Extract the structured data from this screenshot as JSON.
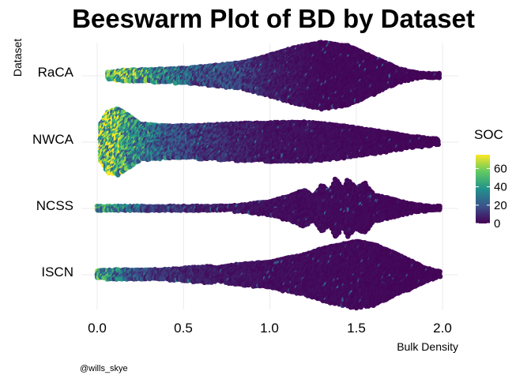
{
  "chart_data": {
    "type": "beeswarm",
    "title": "Beeswarm Plot of BD by Dataset",
    "xlabel": "Bulk Density",
    "ylabel": "Dataset",
    "xlim": [
      -0.05,
      2.05
    ],
    "xticks": [
      "0.0",
      "0.5",
      "1.0",
      "1.5",
      "2.0"
    ],
    "xtick_values": [
      0.0,
      0.5,
      1.0,
      1.5,
      2.0
    ],
    "categories": [
      "RaCA",
      "NWCA",
      "NCSS",
      "ISCN"
    ],
    "color_legend": {
      "title": "SOC",
      "range": [
        0,
        75
      ],
      "ticks": [
        "0",
        "20",
        "40",
        "60"
      ],
      "tick_values": [
        0,
        20,
        40,
        60
      ],
      "palette": "viridis",
      "colors": [
        "#440154",
        "#3b528b",
        "#21918c",
        "#5ec962",
        "#fde725"
      ]
    },
    "grid": true,
    "legend_position": "right",
    "series": [
      {
        "name": "RaCA",
        "x_range": [
          0.06,
          1.99
        ],
        "density_profile": [
          [
            0.06,
            0.1
          ],
          [
            0.15,
            0.16
          ],
          [
            0.3,
            0.18
          ],
          [
            0.5,
            0.22
          ],
          [
            0.7,
            0.32
          ],
          [
            0.85,
            0.4
          ],
          [
            1.0,
            0.62
          ],
          [
            1.15,
            0.85
          ],
          [
            1.3,
            1.0
          ],
          [
            1.45,
            0.9
          ],
          [
            1.6,
            0.55
          ],
          [
            1.75,
            0.2
          ],
          [
            1.85,
            0.08
          ],
          [
            1.99,
            0.04
          ]
        ],
        "soc_profile": [
          [
            0.06,
            45
          ],
          [
            0.2,
            50
          ],
          [
            0.4,
            30
          ],
          [
            0.6,
            18
          ],
          [
            0.8,
            15
          ],
          [
            1.0,
            6
          ],
          [
            1.3,
            2
          ],
          [
            1.99,
            1
          ]
        ]
      },
      {
        "name": "NWCA",
        "x_range": [
          0.02,
          1.98
        ],
        "density_profile": [
          [
            0.02,
            0.55
          ],
          [
            0.06,
            0.9
          ],
          [
            0.12,
            1.0
          ],
          [
            0.18,
            0.8
          ],
          [
            0.25,
            0.55
          ],
          [
            0.4,
            0.48
          ],
          [
            0.6,
            0.5
          ],
          [
            0.8,
            0.55
          ],
          [
            1.0,
            0.58
          ],
          [
            1.2,
            0.6
          ],
          [
            1.4,
            0.5
          ],
          [
            1.6,
            0.35
          ],
          [
            1.8,
            0.18
          ],
          [
            1.98,
            0.08
          ]
        ],
        "soc_profile": [
          [
            0.02,
            50
          ],
          [
            0.1,
            55
          ],
          [
            0.2,
            35
          ],
          [
            0.4,
            20
          ],
          [
            0.6,
            12
          ],
          [
            0.8,
            8
          ],
          [
            1.0,
            4
          ],
          [
            1.5,
            2
          ],
          [
            1.98,
            1
          ]
        ]
      },
      {
        "name": "NCSS",
        "x_range": [
          0.0,
          1.99
        ],
        "density_profile": [
          [
            0.0,
            0.04
          ],
          [
            0.5,
            0.04
          ],
          [
            0.8,
            0.08
          ],
          [
            1.0,
            0.2
          ],
          [
            1.1,
            0.35
          ],
          [
            1.2,
            0.55
          ],
          [
            1.25,
            0.35
          ],
          [
            1.3,
            0.7
          ],
          [
            1.35,
            0.5
          ],
          [
            1.38,
            0.9
          ],
          [
            1.42,
            0.55
          ],
          [
            1.45,
            0.85
          ],
          [
            1.5,
            0.6
          ],
          [
            1.55,
            0.75
          ],
          [
            1.6,
            0.4
          ],
          [
            1.7,
            0.3
          ],
          [
            1.8,
            0.15
          ],
          [
            1.9,
            0.08
          ],
          [
            1.99,
            0.04
          ]
        ],
        "soc_profile": [
          [
            0.0,
            40
          ],
          [
            0.1,
            35
          ],
          [
            0.3,
            15
          ],
          [
            0.6,
            8
          ],
          [
            1.0,
            3
          ],
          [
            1.99,
            1
          ]
        ]
      },
      {
        "name": "ISCN",
        "x_range": [
          0.0,
          1.99
        ],
        "density_profile": [
          [
            0.0,
            0.12
          ],
          [
            0.1,
            0.14
          ],
          [
            0.4,
            0.15
          ],
          [
            0.65,
            0.25
          ],
          [
            0.7,
            0.2
          ],
          [
            0.8,
            0.3
          ],
          [
            1.0,
            0.38
          ],
          [
            1.1,
            0.5
          ],
          [
            1.2,
            0.6
          ],
          [
            1.3,
            0.78
          ],
          [
            1.4,
            0.9
          ],
          [
            1.5,
            1.0
          ],
          [
            1.6,
            0.92
          ],
          [
            1.7,
            0.7
          ],
          [
            1.8,
            0.45
          ],
          [
            1.9,
            0.2
          ],
          [
            1.99,
            0.08
          ]
        ],
        "soc_profile": [
          [
            0.0,
            40
          ],
          [
            0.1,
            30
          ],
          [
            0.3,
            12
          ],
          [
            0.6,
            6
          ],
          [
            1.0,
            3
          ],
          [
            1.99,
            1
          ]
        ]
      }
    ]
  },
  "credit": "@wills_skye"
}
